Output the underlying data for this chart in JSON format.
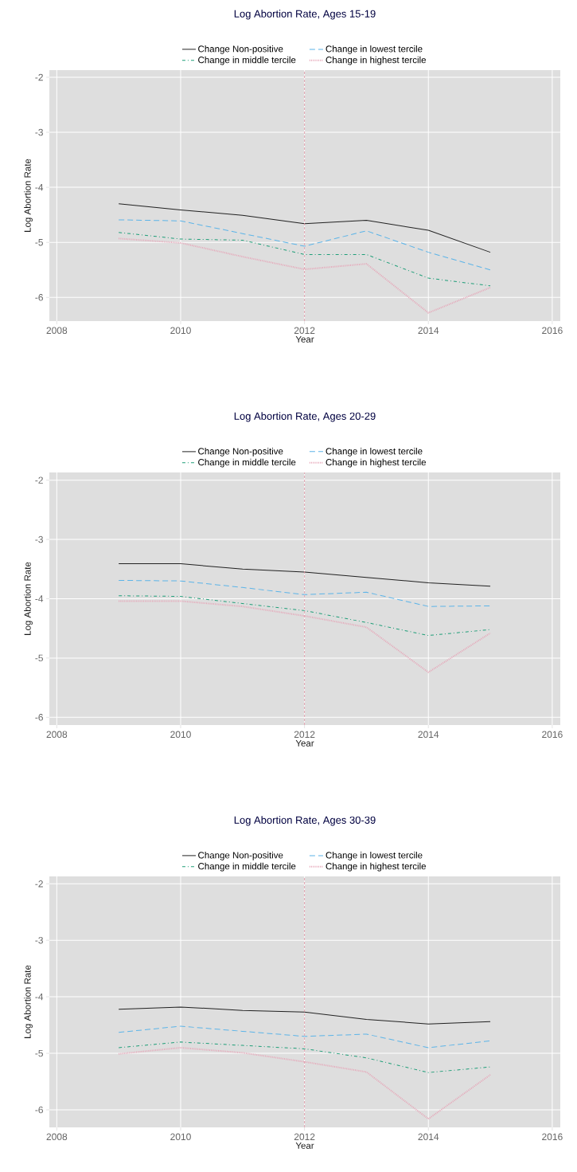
{
  "chart_data": [
    {
      "type": "line",
      "title": "Log Abortion Rate, Ages 15-19",
      "xlabel": "Year",
      "ylabel": "Log Abortion Rate",
      "x": [
        2009,
        2010,
        2011,
        2012,
        2013,
        2014,
        2015
      ],
      "series": [
        {
          "name": "Change Non-positive",
          "color": "#222222",
          "line_style": "solid",
          "values": [
            -4.3,
            -4.41,
            -4.51,
            -4.66,
            -4.6,
            -4.78,
            -5.18
          ]
        },
        {
          "name": "Change in lowest tercile",
          "color": "#5cb4e8",
          "line_style": "dashed",
          "values": [
            -4.59,
            -4.61,
            -4.84,
            -5.07,
            -4.79,
            -5.18,
            -5.5
          ]
        },
        {
          "name": "Change in middle tercile",
          "color": "#1f9e78",
          "line_style": "dashdot",
          "values": [
            -4.82,
            -4.94,
            -4.96,
            -5.22,
            -5.22,
            -5.65,
            -5.79
          ]
        },
        {
          "name": "Change in highest tercile",
          "color": "#e6a6b8",
          "line_style": "dotted",
          "values": [
            -4.93,
            -5.01,
            -5.26,
            -5.49,
            -5.39,
            -6.28,
            -5.82
          ]
        }
      ],
      "xlim": [
        2007.88,
        2016.13
      ],
      "ylim": [
        -6.43,
        -1.87
      ],
      "xticks": [
        2008,
        2010,
        2012,
        2014,
        2016
      ],
      "yticks": [
        -6,
        -5,
        -4,
        -3,
        -2
      ],
      "grid": true,
      "legend": "top",
      "ref_lines": [
        {
          "axis": "x",
          "value": 2012,
          "color": "#d98a9a",
          "line_style": "dashed"
        }
      ]
    },
    {
      "type": "line",
      "title": "Log Abortion Rate, Ages 20-29",
      "xlabel": "Year",
      "ylabel": "Log Abortion Rate",
      "x": [
        2009,
        2010,
        2011,
        2012,
        2013,
        2014,
        2015
      ],
      "series": [
        {
          "name": "Change Non-positive",
          "color": "#222222",
          "line_style": "solid",
          "values": [
            -3.41,
            -3.41,
            -3.5,
            -3.55,
            -3.64,
            -3.73,
            -3.79
          ]
        },
        {
          "name": "Change in lowest tercile",
          "color": "#5cb4e8",
          "line_style": "dashed",
          "values": [
            -3.69,
            -3.7,
            -3.81,
            -3.93,
            -3.89,
            -4.13,
            -4.12
          ]
        },
        {
          "name": "Change in middle tercile",
          "color": "#1f9e78",
          "line_style": "dashdot",
          "values": [
            -3.95,
            -3.96,
            -4.08,
            -4.2,
            -4.4,
            -4.62,
            -4.52
          ]
        },
        {
          "name": "Change in highest tercile",
          "color": "#e6a6b8",
          "line_style": "dotted",
          "values": [
            -4.04,
            -4.04,
            -4.13,
            -4.29,
            -4.48,
            -5.24,
            -4.58
          ]
        }
      ],
      "xlim": [
        2007.88,
        2016.13
      ],
      "ylim": [
        -6.13,
        -1.87
      ],
      "xticks": [
        2008,
        2010,
        2012,
        2014,
        2016
      ],
      "yticks": [
        -6,
        -5,
        -4,
        -3,
        -2
      ],
      "grid": true,
      "legend": "top",
      "ref_lines": [
        {
          "axis": "x",
          "value": 2012,
          "color": "#d98a9a",
          "line_style": "dashed"
        }
      ]
    },
    {
      "type": "line",
      "title": "Log Abortion Rate, Ages 30-39",
      "xlabel": "Year",
      "ylabel": "Log Abortion Rate",
      "x": [
        2009,
        2010,
        2011,
        2012,
        2013,
        2014,
        2015
      ],
      "series": [
        {
          "name": "Change Non-positive",
          "color": "#222222",
          "line_style": "solid",
          "values": [
            -4.22,
            -4.18,
            -4.24,
            -4.27,
            -4.4,
            -4.48,
            -4.44
          ]
        },
        {
          "name": "Change in lowest tercile",
          "color": "#5cb4e8",
          "line_style": "dashed",
          "values": [
            -4.63,
            -4.52,
            -4.61,
            -4.7,
            -4.66,
            -4.9,
            -4.78
          ]
        },
        {
          "name": "Change in middle tercile",
          "color": "#1f9e78",
          "line_style": "dashdot",
          "values": [
            -4.9,
            -4.8,
            -4.86,
            -4.92,
            -5.08,
            -5.34,
            -5.24
          ]
        },
        {
          "name": "Change in highest tercile",
          "color": "#e6a6b8",
          "line_style": "dotted",
          "values": [
            -5.01,
            -4.9,
            -4.99,
            -5.15,
            -5.33,
            -6.16,
            -5.38
          ]
        }
      ],
      "xlim": [
        2007.88,
        2016.13
      ],
      "ylim": [
        -6.31,
        -1.87
      ],
      "xticks": [
        2008,
        2010,
        2012,
        2014,
        2016
      ],
      "yticks": [
        -6,
        -5,
        -4,
        -3,
        -2
      ],
      "grid": true,
      "legend": "top",
      "ref_lines": [
        {
          "axis": "x",
          "value": 2012,
          "color": "#d98a9a",
          "line_style": "dashed"
        }
      ]
    }
  ]
}
